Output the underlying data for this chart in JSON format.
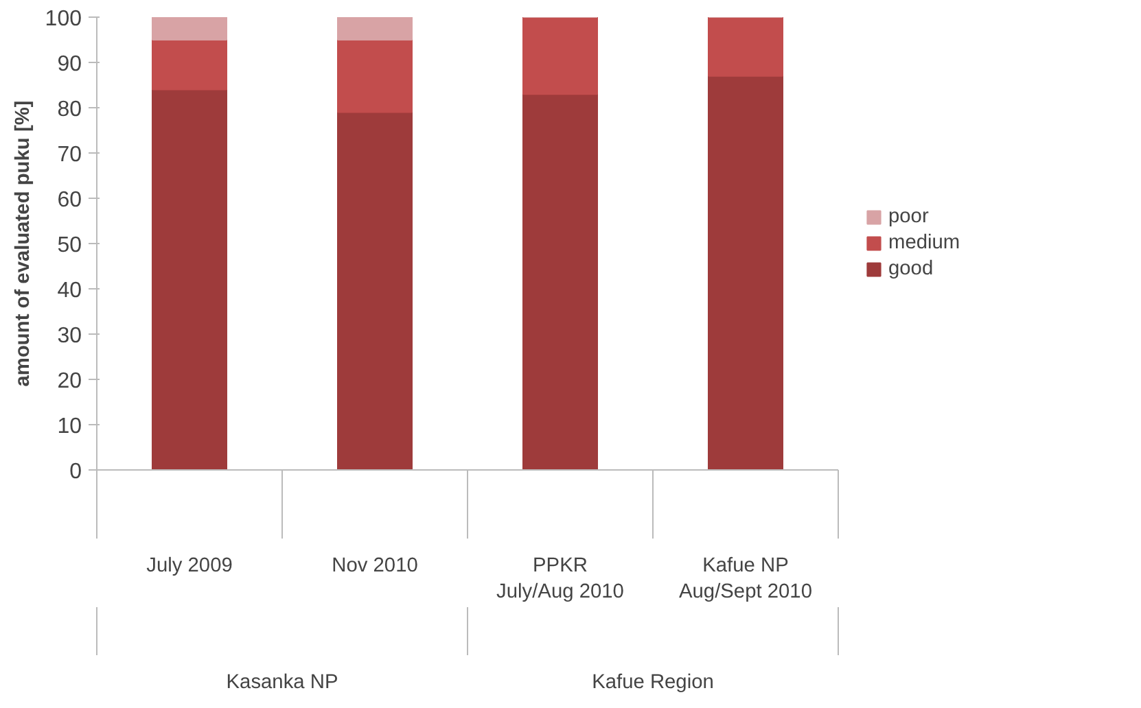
{
  "chart_data": {
    "type": "bar",
    "stacked": true,
    "ylabel": "amount of evaluated puku [%]",
    "categories": [
      "July 2009",
      "Nov 2010",
      "PPKR\nJuly/Aug 2010",
      "Kafue NP\nAug/Sept 2010"
    ],
    "series": [
      {
        "name": "good",
        "color": "#9e3b3b",
        "values": [
          84,
          79,
          83,
          87
        ]
      },
      {
        "name": "medium",
        "color": "#c24d4d",
        "values": [
          11,
          16,
          17,
          13
        ]
      },
      {
        "name": "poor",
        "color": "#d8a3a5",
        "values": [
          5,
          5,
          0,
          0
        ]
      }
    ],
    "ylim": [
      0,
      100
    ],
    "yticks": [
      0,
      10,
      20,
      30,
      40,
      50,
      60,
      70,
      80,
      90,
      100
    ],
    "annotations": [
      "Kasanka NP",
      "Kafue Region"
    ],
    "grid": false,
    "legend": "right"
  }
}
